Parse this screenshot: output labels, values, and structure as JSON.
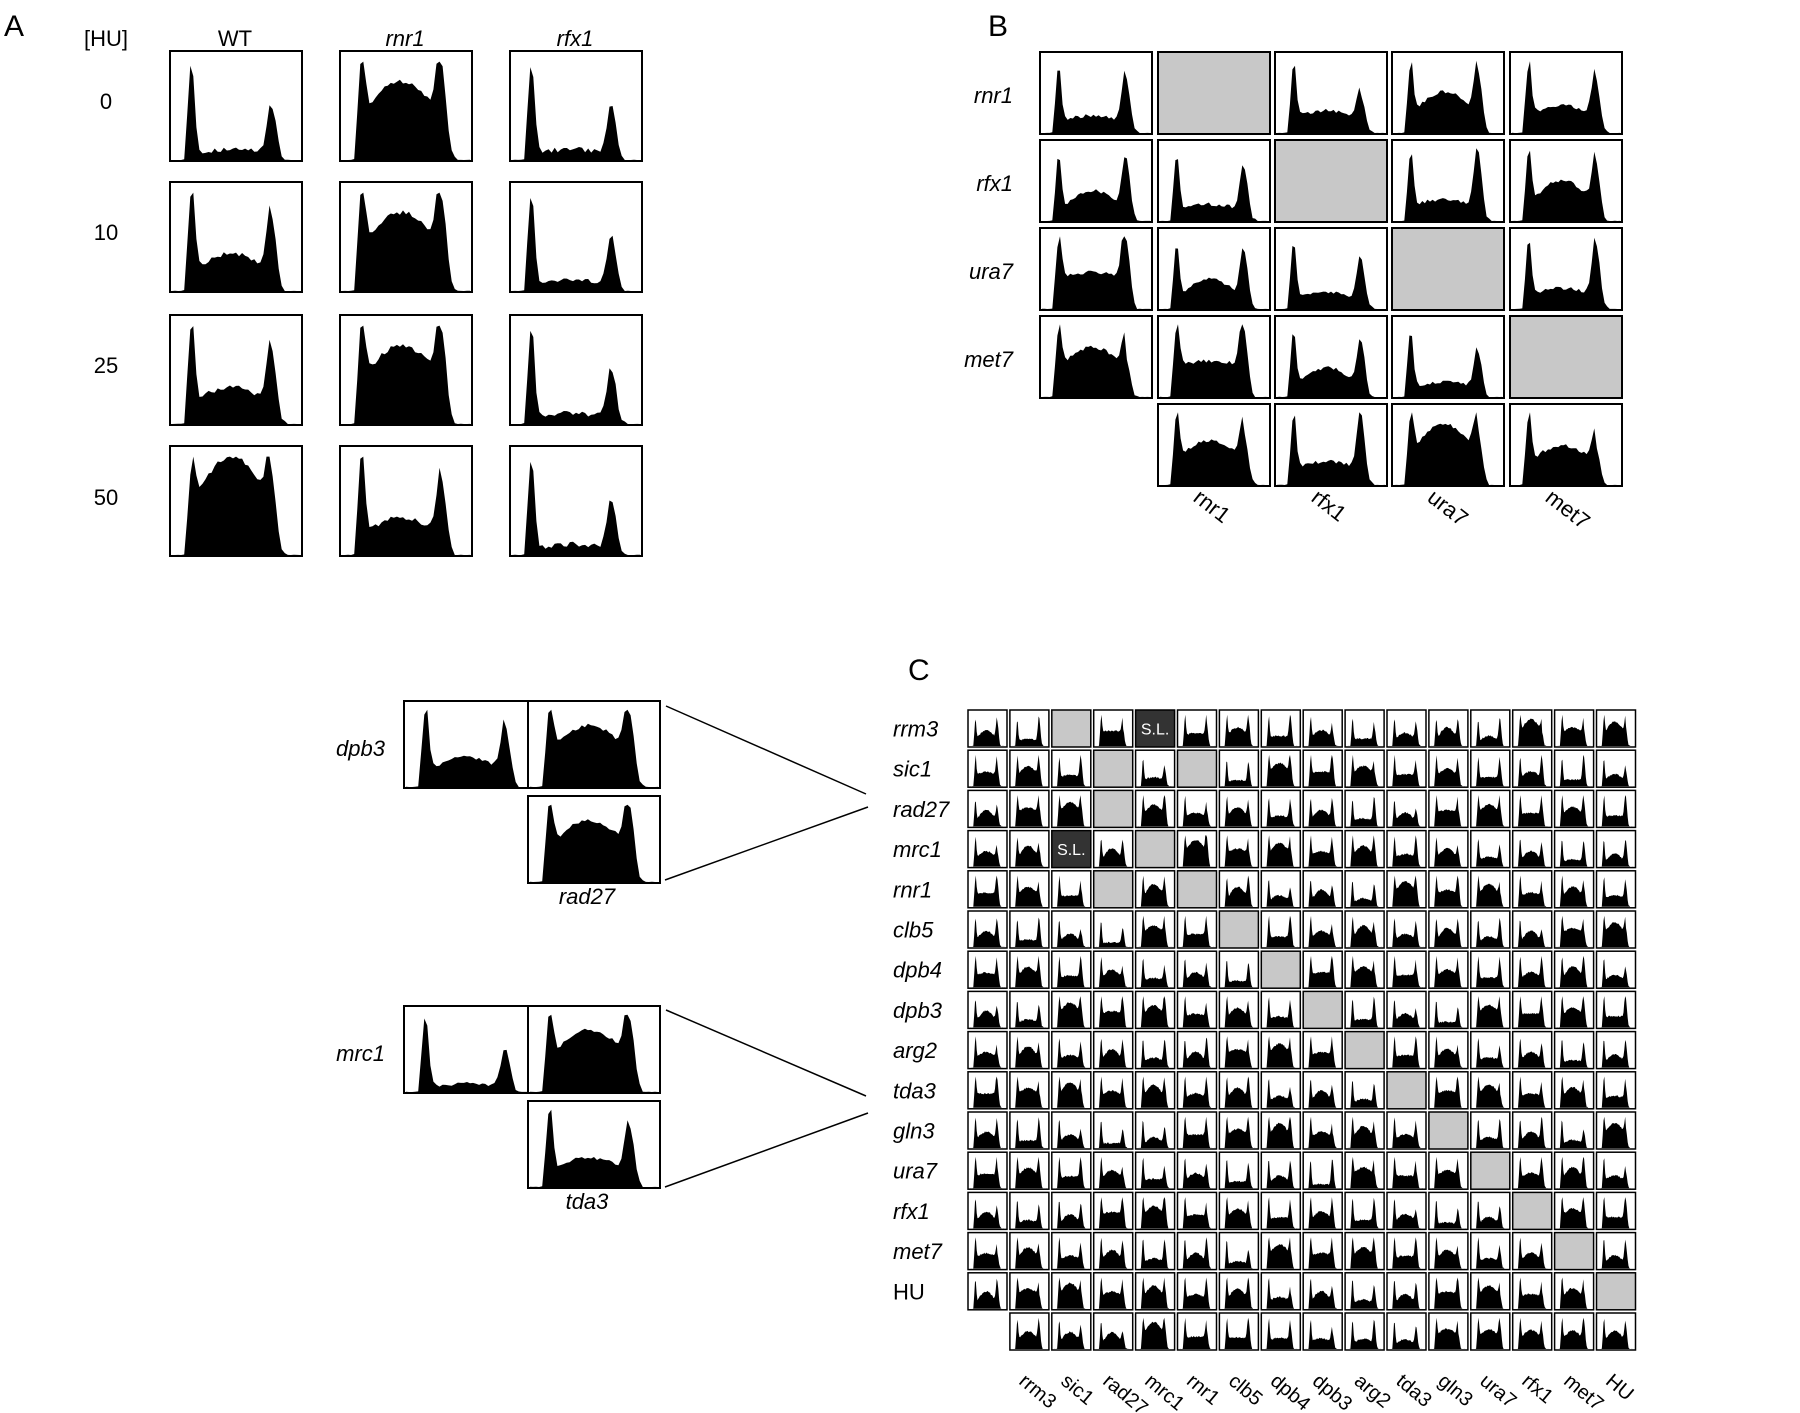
{
  "panel_a": {
    "letter": "A",
    "axis_label": "[HU]",
    "columns": [
      {
        "label": "WT",
        "italic": false
      },
      {
        "label": "rnr1",
        "italic": true
      },
      {
        "label": "rfx1",
        "italic": true
      }
    ],
    "rows": [
      "0",
      "10",
      "25",
      "50"
    ],
    "cell_profiles": [
      [
        "g1",
        "full",
        "g1"
      ],
      [
        "mid",
        "full",
        "g1"
      ],
      [
        "mid",
        "full",
        "g1"
      ],
      [
        "s",
        "mid",
        "g1"
      ]
    ]
  },
  "panel_b": {
    "letter": "B",
    "rows": [
      "rnr1",
      "rfx1",
      "ura7",
      "met7"
    ],
    "columns": [
      "rnr1",
      "rfx1",
      "ura7",
      "met7"
    ],
    "empty_color": "#c8c8c8"
  },
  "panel_c": {
    "letter": "C",
    "rows": [
      "rrm3",
      "sic1",
      "rad27",
      "mrc1",
      "rnr1",
      "clb5",
      "dpb4",
      "dpb3",
      "arg2",
      "tda3",
      "gln3",
      "ura7",
      "rfx1",
      "met7",
      "HU"
    ],
    "columns": [
      "rrm3",
      "sic1",
      "rad27",
      "mrc1",
      "rnr1",
      "clb5",
      "dpb4",
      "dpb3",
      "arg2",
      "tda3",
      "gln3",
      "ura7",
      "rfx1",
      "met7",
      "HU"
    ],
    "synthetic_lethal_label": "S.L.",
    "synthetic_lethal_pairs": [
      [
        "rrm3",
        "mrc1"
      ],
      [
        "mrc1",
        "sic1"
      ]
    ],
    "empty_pairs": [
      [
        "rrm3",
        "sic1"
      ],
      [
        "sic1",
        "rad27"
      ],
      [
        "sic1",
        "rnr1"
      ],
      [
        "rad27",
        "rad27"
      ],
      [
        "mrc1",
        "mrc1"
      ],
      [
        "rnr1",
        "rad27"
      ],
      [
        "rnr1",
        "rnr1"
      ],
      [
        "clb5",
        "clb5"
      ],
      [
        "dpb4",
        "dpb4"
      ],
      [
        "dpb3",
        "dpb3"
      ],
      [
        "arg2",
        "arg2"
      ],
      [
        "tda3",
        "tda3"
      ],
      [
        "gln3",
        "gln3"
      ],
      [
        "ura7",
        "ura7"
      ],
      [
        "rfx1",
        "rfx1"
      ],
      [
        "met7",
        "met7"
      ],
      [
        "HU",
        "HU"
      ]
    ],
    "empty_color": "#c8c8c8",
    "sl_color": "#333333"
  },
  "insets": [
    {
      "row_label": "dpb3",
      "col_label": "rad27"
    },
    {
      "row_label": "mrc1",
      "col_label": "tda3"
    }
  ]
}
